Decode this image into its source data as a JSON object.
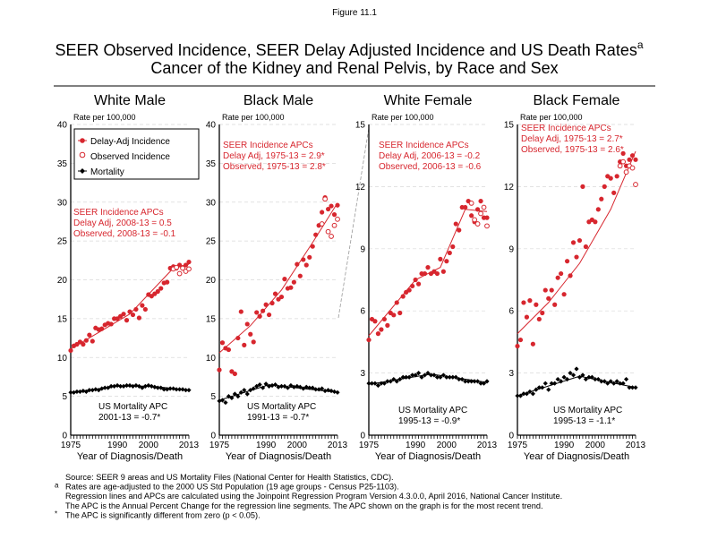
{
  "figure_label": "Figure 11.1",
  "title_line1": "SEER Observed Incidence, SEER Delay Adjusted Incidence and US Death Rates",
  "title_sup": "a",
  "title_line2": "Cancer of the Kidney and Renal Pelvis, by Race and Sex",
  "colors": {
    "incidence": "#d7262e",
    "mortality": "#000000",
    "grid": "#d9d9d9"
  },
  "legend": {
    "items": [
      {
        "label": "Delay-Adj Incidence",
        "marker": "filled-circle",
        "color": "#d7262e"
      },
      {
        "label": "Observed Incidence",
        "marker": "open-circle",
        "color": "#d7262e"
      },
      {
        "label": "Mortality",
        "marker": "diamond",
        "color": "#000000"
      }
    ]
  },
  "footnotes": [
    {
      "marker": "",
      "text": "Source: SEER 9 areas and US Mortality Files (National Center for Health Statistics, CDC)."
    },
    {
      "marker": "a",
      "text": "Rates are age-adjusted to the 2000 US Std Population (19 age groups - Census P25-1103)."
    },
    {
      "marker": "",
      "text": "Regression lines and APCs are calculated using the Joinpoint Regression Program Version 4.3.0.0, April 2016, National Cancer Institute."
    },
    {
      "marker": "",
      "text": "The APC is the Annual Percent Change for the regression line segments. The APC shown on the graph is for the most recent trend."
    },
    {
      "marker": "*",
      "text": "The APC is significantly different from zero (p < 0.05)."
    }
  ],
  "chart_data": [
    {
      "type": "line",
      "title": "White Male",
      "ylabel": "Rate per 100,000",
      "xlabel": "Year of Diagnosis/Death",
      "xlim": [
        1975,
        2013
      ],
      "ylim": [
        0,
        40
      ],
      "yticks": [
        0,
        5,
        10,
        15,
        20,
        25,
        30,
        35,
        40
      ],
      "xtick_labels": [
        "1975",
        "1990",
        "2000",
        "2013"
      ],
      "grid": true,
      "legend": "top-left",
      "incidence_apc": [
        "SEER Incidence APCs",
        "Delay Adj, 2008-13 = 0.5",
        "Observed, 2008-13 = -0.1"
      ],
      "mortality_apc": [
        "US Mortality APC",
        "2001-13 = -0.7*"
      ],
      "delay_adj": [
        10.9,
        11.5,
        11.7,
        12.0,
        11.7,
        12.2,
        12.9,
        12.1,
        13.8,
        13.6,
        13.7,
        14.2,
        14.4,
        14.3,
        15.0,
        15.0,
        15.3,
        15.6,
        14.8,
        15.9,
        15.5,
        16.2,
        15.1,
        16.7,
        16.2,
        18.1,
        17.9,
        18.2,
        18.5,
        18.9,
        19.6,
        19.7,
        21.5,
        21.7,
        21.5,
        21.9,
        21.6,
        21.9,
        22.3
      ],
      "observed": {
        "years": [
          2008,
          2009,
          2010,
          2011,
          2012,
          2013
        ],
        "values": [
          21.4,
          21.6,
          20.8,
          21.5,
          21.1,
          21.4
        ]
      },
      "mortality": [
        5.5,
        5.5,
        5.6,
        5.6,
        5.7,
        5.6,
        5.8,
        5.8,
        5.9,
        5.8,
        6.0,
        6.1,
        6.1,
        6.3,
        6.3,
        6.4,
        6.3,
        6.3,
        6.4,
        6.4,
        6.3,
        6.4,
        6.3,
        6.1,
        6.3,
        6.4,
        6.3,
        6.2,
        6.1,
        6.1,
        5.9,
        5.9,
        6.0,
        6.0,
        5.9,
        5.9,
        5.9,
        5.8,
        5.8
      ],
      "incidence_trend": [
        [
          1975,
          11.1
        ],
        [
          1994,
          15.6
        ],
        [
          2008,
          21.5
        ],
        [
          2013,
          22.0
        ]
      ],
      "mortality_trend": [
        [
          1975,
          5.5
        ],
        [
          1990,
          6.3
        ],
        [
          2001,
          6.3
        ],
        [
          2013,
          5.8
        ]
      ]
    },
    {
      "type": "line",
      "title": "Black Male",
      "ylabel": "Rate per 100,000",
      "xlabel": "Year of Diagnosis/Death",
      "xlim": [
        1975,
        2013
      ],
      "ylim": [
        0,
        40
      ],
      "yticks": [
        0,
        5,
        10,
        15,
        20,
        25,
        30,
        35,
        40
      ],
      "xtick_labels": [
        "1975",
        "1990",
        "2000",
        "2013"
      ],
      "grid": true,
      "incidence_apc": [
        "SEER Incidence APCs",
        "Delay Adj, 1975-13 = 2.9*",
        "Observed, 1975-13 = 2.8*"
      ],
      "mortality_apc": [
        "US Mortality APC",
        "1991-13 = -0.7*"
      ],
      "delay_adj": [
        8.4,
        11.9,
        11.2,
        11.0,
        8.2,
        7.9,
        12.5,
        15.9,
        11.6,
        14.3,
        13.0,
        12.0,
        15.8,
        15.3,
        16.0,
        16.8,
        15.5,
        17.0,
        18.2,
        17.5,
        17.8,
        20.1,
        18.9,
        19.0,
        19.7,
        22.0,
        20.5,
        22.6,
        21.9,
        22.9,
        24.3,
        25.8,
        27.0,
        28.7,
        30.6,
        29.1,
        29.5,
        28.4,
        29.6
      ],
      "observed": {
        "years": [
          2008,
          2009,
          2010,
          2011,
          2012,
          2013
        ],
        "values": [
          27.2,
          30.4,
          26.2,
          25.6,
          27.0,
          27.8
        ]
      },
      "mortality": [
        4.4,
        4.5,
        4.2,
        5.0,
        4.8,
        5.3,
        5.0,
        5.5,
        5.8,
        5.3,
        5.8,
        6.0,
        6.3,
        6.5,
        6.1,
        6.6,
        6.3,
        6.4,
        6.5,
        6.2,
        6.3,
        6.3,
        6.1,
        6.4,
        6.2,
        6.3,
        6.2,
        6.0,
        6.2,
        6.1,
        6.1,
        5.9,
        5.9,
        6.0,
        5.7,
        5.8,
        5.7,
        5.6,
        5.5
      ],
      "incidence_trend": [
        [
          1975,
          10.6
        ],
        [
          1985,
          14.1
        ],
        [
          1995,
          18.7
        ],
        [
          2005,
          24.8
        ],
        [
          2013,
          29.9
        ]
      ],
      "mortality_trend": [
        [
          1975,
          4.5
        ],
        [
          1991,
          6.5
        ],
        [
          2013,
          5.5
        ]
      ]
    },
    {
      "type": "line",
      "title": "White Female",
      "ylabel": "Rate per 100,000",
      "xlabel": "Year of Diagnosis/Death",
      "xlim": [
        1975,
        2013
      ],
      "ylim": [
        0,
        15
      ],
      "yticks": [
        0,
        3,
        6,
        9,
        12,
        15
      ],
      "xtick_labels": [
        "1975",
        "1990",
        "2000",
        "2013"
      ],
      "grid": true,
      "incidence_apc": [
        "SEER Incidence APCs",
        "Delay Adj, 2006-13 = -0.2",
        "Observed, 2006-13 = -0.6"
      ],
      "mortality_apc": [
        "US Mortality APC",
        "1995-13 = -0.9*"
      ],
      "delay_adj": [
        4.6,
        5.6,
        5.5,
        4.9,
        5.1,
        5.6,
        5.3,
        5.9,
        5.8,
        6.4,
        5.9,
        6.7,
        6.9,
        7.0,
        7.2,
        7.5,
        7.3,
        7.8,
        7.8,
        8.1,
        7.8,
        7.9,
        7.8,
        8.5,
        7.9,
        8.4,
        8.8,
        9.1,
        10.2,
        9.9,
        11.0,
        11.0,
        11.3,
        10.6,
        10.3,
        10.9,
        11.3,
        10.5,
        10.5
      ],
      "observed": {
        "years": [
          2008,
          2009,
          2010,
          2011,
          2012,
          2013
        ],
        "values": [
          11.2,
          10.4,
          10.2,
          10.7,
          11.0,
          10.1
        ]
      },
      "mortality": [
        2.5,
        2.5,
        2.5,
        2.4,
        2.5,
        2.5,
        2.6,
        2.6,
        2.7,
        2.6,
        2.7,
        2.8,
        2.8,
        2.8,
        2.9,
        2.9,
        3.0,
        2.8,
        2.9,
        3.0,
        2.9,
        2.9,
        2.8,
        2.8,
        2.9,
        2.8,
        2.8,
        2.8,
        2.8,
        2.7,
        2.7,
        2.6,
        2.6,
        2.6,
        2.6,
        2.6,
        2.5,
        2.5,
        2.6
      ],
      "incidence_trend": [
        [
          1975,
          4.8
        ],
        [
          1990,
          7.5
        ],
        [
          1998,
          8.1
        ],
        [
          2006,
          10.9
        ],
        [
          2013,
          10.8
        ]
      ],
      "mortality_trend": [
        [
          1975,
          2.45
        ],
        [
          1995,
          2.95
        ],
        [
          2013,
          2.55
        ]
      ]
    },
    {
      "type": "line",
      "title": "Black Female",
      "ylabel": "Rate per 100,000",
      "xlabel": "Year of Diagnosis/Death",
      "xlim": [
        1975,
        2013
      ],
      "ylim": [
        0,
        15
      ],
      "yticks": [
        0,
        3,
        6,
        9,
        12,
        15
      ],
      "xtick_labels": [
        "1975",
        "1990",
        "2000",
        "2013"
      ],
      "grid": true,
      "incidence_apc": [
        "SEER Incidence APCs",
        "Delay Adj, 1975-13 = 2.7*",
        "Observed, 1975-13 = 2.6*"
      ],
      "mortality_apc": [
        "US Mortality APC",
        "1995-13 = -1.1*"
      ],
      "delay_adj": [
        4.3,
        4.6,
        6.4,
        5.7,
        6.5,
        4.4,
        6.3,
        5.6,
        5.9,
        7.0,
        6.6,
        7.0,
        6.3,
        7.6,
        7.8,
        6.8,
        8.4,
        7.7,
        9.3,
        8.6,
        9.4,
        12.0,
        9.1,
        10.3,
        10.4,
        10.3,
        10.9,
        11.4,
        12.0,
        12.5,
        12.4,
        11.7,
        12.5,
        13.2,
        13.6,
        13.0,
        13.3,
        13.5,
        13.3
      ],
      "observed": {
        "years": [
          2008,
          2009,
          2010,
          2011,
          2012,
          2013
        ],
        "values": [
          13.0,
          13.2,
          12.7,
          13.0,
          12.9,
          12.1
        ]
      },
      "mortality": [
        1.9,
        1.9,
        2.0,
        2.0,
        2.1,
        2.0,
        2.2,
        2.3,
        2.3,
        2.5,
        2.2,
        2.5,
        2.5,
        2.7,
        2.6,
        2.8,
        2.7,
        3.0,
        2.9,
        3.2,
        2.8,
        2.9,
        2.7,
        2.8,
        2.8,
        2.7,
        2.7,
        2.6,
        2.6,
        2.5,
        2.6,
        2.5,
        2.6,
        2.5,
        2.5,
        2.7,
        2.3,
        2.3,
        2.3
      ],
      "incidence_trend": [
        [
          1975,
          4.9
        ],
        [
          1985,
          6.4
        ],
        [
          1995,
          8.3
        ],
        [
          2005,
          10.9
        ],
        [
          2013,
          13.7
        ]
      ],
      "mortality_trend": [
        [
          1975,
          1.9
        ],
        [
          1995,
          2.85
        ],
        [
          2013,
          2.3
        ]
      ]
    }
  ]
}
